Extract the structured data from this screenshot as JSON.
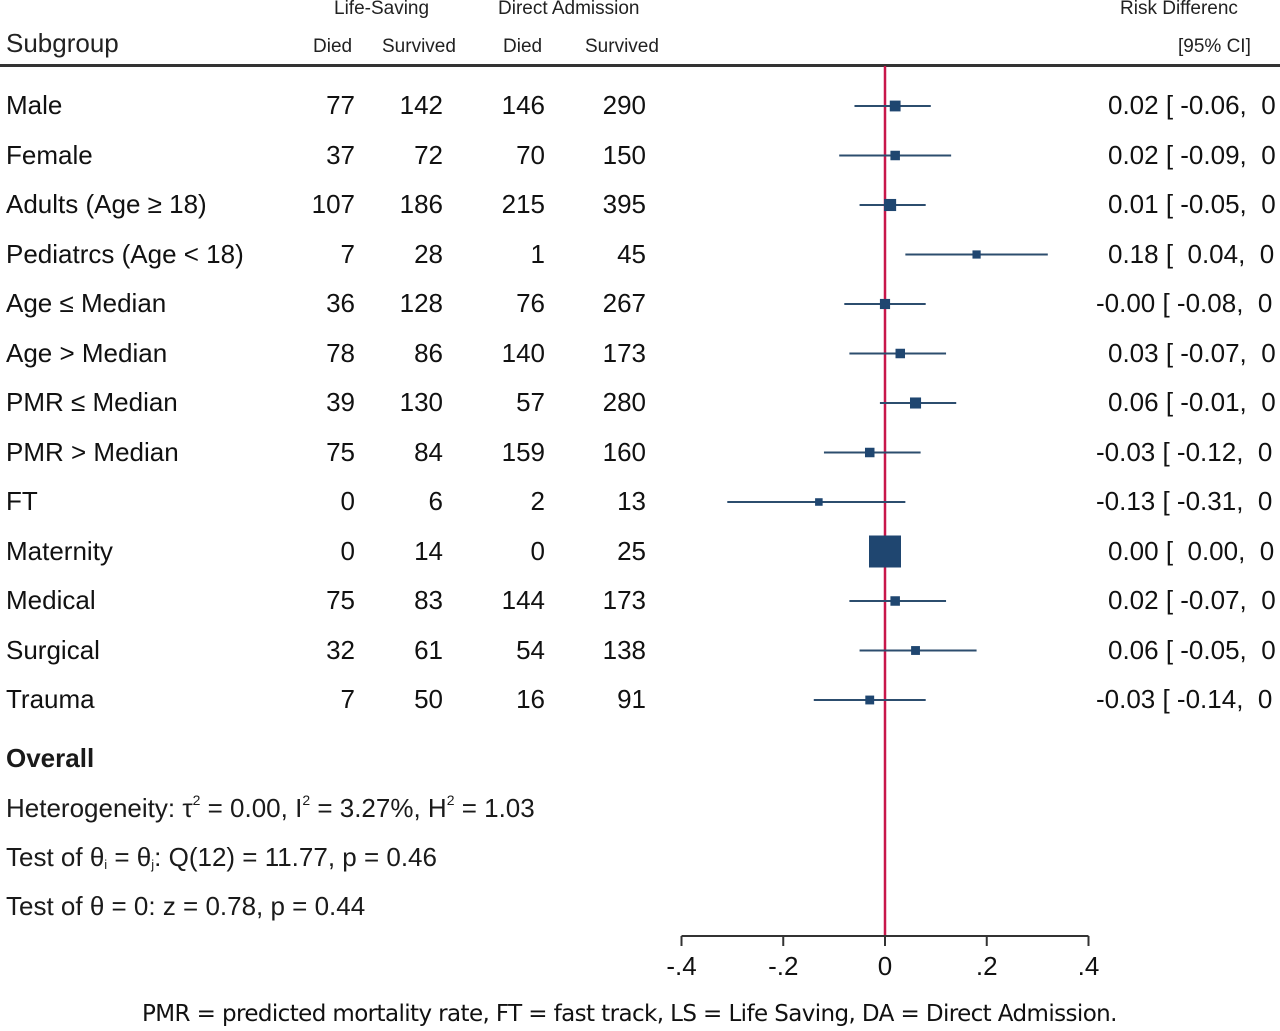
{
  "chart_data": {
    "type": "forest",
    "title": "",
    "header": {
      "subgroup_label": "Subgroup",
      "group1_label": "Life-Saving",
      "group2_label": "Direct Admission",
      "died_label": "Died",
      "survived_label": "Survived",
      "effect_label": "Risk Differenc",
      "ci_label": "[95% CI]"
    },
    "rows": [
      {
        "label": "Male",
        "ls_died": "77",
        "ls_survived": "142",
        "da_died": "146",
        "da_survived": "290",
        "rd": 0.02,
        "lo": -0.06,
        "hi": 0.09,
        "weight": 0.6,
        "text": "0.02 [ -0.06,  0"
      },
      {
        "label": "Female",
        "ls_died": "37",
        "ls_survived": "72",
        "da_died": "70",
        "da_survived": "150",
        "rd": 0.02,
        "lo": -0.09,
        "hi": 0.13,
        "weight": 0.5,
        "text": "0.02 [ -0.09,  0"
      },
      {
        "label": "Adults (Age ≥ 18)",
        "ls_died": "107",
        "ls_survived": "186",
        "da_died": "215",
        "da_survived": "395",
        "rd": 0.01,
        "lo": -0.05,
        "hi": 0.08,
        "weight": 0.7,
        "text": "0.01 [ -0.05,  0"
      },
      {
        "label": "Pediatrcs (Age < 18)",
        "ls_died": "7",
        "ls_survived": "28",
        "da_died": "1",
        "da_survived": "45",
        "rd": 0.18,
        "lo": 0.04,
        "hi": 0.32,
        "weight": 0.4,
        "text": "0.18 [  0.04,  0"
      },
      {
        "label": "Age ≤ Median",
        "ls_died": "36",
        "ls_survived": "128",
        "da_died": "76",
        "da_survived": "267",
        "rd": -0.0,
        "lo": -0.08,
        "hi": 0.08,
        "weight": 0.55,
        "text": "-0.00 [ -0.08,  0"
      },
      {
        "label": "Age > Median",
        "ls_died": "78",
        "ls_survived": "86",
        "da_died": "140",
        "da_survived": "173",
        "rd": 0.03,
        "lo": -0.07,
        "hi": 0.12,
        "weight": 0.5,
        "text": "0.03 [ -0.07,  0"
      },
      {
        "label": "PMR ≤ Median",
        "ls_died": "39",
        "ls_survived": "130",
        "da_died": "57",
        "da_survived": "280",
        "rd": 0.06,
        "lo": -0.01,
        "hi": 0.14,
        "weight": 0.62,
        "text": "0.06 [ -0.01,  0"
      },
      {
        "label": "PMR > Median",
        "ls_died": "75",
        "ls_survived": "84",
        "da_died": "159",
        "da_survived": "160",
        "rd": -0.03,
        "lo": -0.12,
        "hi": 0.07,
        "weight": 0.5,
        "text": "-0.03 [ -0.12,  0"
      },
      {
        "label": "FT",
        "ls_died": "0",
        "ls_survived": "6",
        "da_died": "2",
        "da_survived": "13",
        "rd": -0.13,
        "lo": -0.31,
        "hi": 0.04,
        "weight": 0.35,
        "text": "-0.13 [ -0.31,  0"
      },
      {
        "label": "Maternity",
        "ls_died": "0",
        "ls_survived": "14",
        "da_died": "0",
        "da_survived": "25",
        "rd": 0.0,
        "lo": 0.0,
        "hi": 0.0,
        "weight": 2.0,
        "text": "0.00 [  0.00,  0"
      },
      {
        "label": "Medical",
        "ls_died": "75",
        "ls_survived": "83",
        "da_died": "144",
        "da_survived": "173",
        "rd": 0.02,
        "lo": -0.07,
        "hi": 0.12,
        "weight": 0.5,
        "text": "0.02 [ -0.07,  0"
      },
      {
        "label": "Surgical",
        "ls_died": "32",
        "ls_survived": "61",
        "da_died": "54",
        "da_survived": "138",
        "rd": 0.06,
        "lo": -0.05,
        "hi": 0.18,
        "weight": 0.45,
        "text": "0.06 [ -0.05,  0"
      },
      {
        "label": "Trauma",
        "ls_died": "7",
        "ls_survived": "50",
        "da_died": "16",
        "da_survived": "91",
        "rd": -0.03,
        "lo": -0.14,
        "hi": 0.08,
        "weight": 0.45,
        "text": "-0.03 [ -0.14,  0"
      }
    ],
    "overall": {
      "title": "Overall",
      "heterogeneity_prefix": "Heterogeneity: τ",
      "tau2_value": " = 0.00, I",
      "i2_value": " = 3.27%, H",
      "h2_value": " = 1.03",
      "sup": "2",
      "test1_prefix": "Test of θ",
      "test1_sub_i": "i",
      "test1_mid": " = θ",
      "test1_sub_j": "j",
      "test1_rest": ": Q(12) = 11.77, p = 0.46",
      "test2": "Test of θ = 0: z = 0.78, p = 0.44"
    },
    "xaxis": {
      "ticks": [
        -0.4,
        -0.2,
        0,
        0.2,
        0.4
      ],
      "tick_labels": [
        "-.4",
        "-.2",
        "0",
        ".2",
        ".4"
      ],
      "xlim": [
        -0.4,
        0.4
      ],
      "reference_line": 0
    },
    "colors": {
      "marker": "#1f4670",
      "ci_line": "#2c4d6e",
      "reference_line": "#c8174a",
      "axis": "#333333"
    },
    "footnote": "PMR = predicted mortality rate, FT = fast track, LS = Life Saving, DA = Direct Admission."
  }
}
